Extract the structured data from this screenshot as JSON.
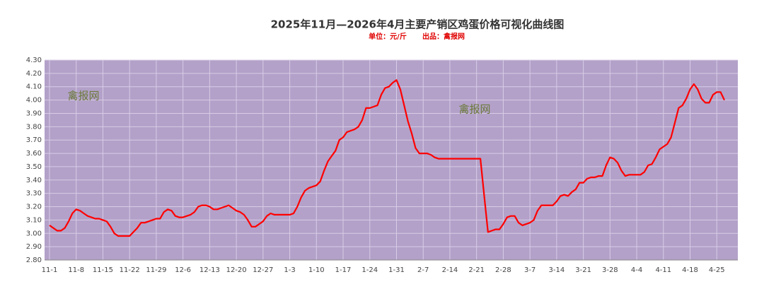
{
  "chart_data": {
    "type": "line",
    "title": "2025年11月—2026年4月主要产销区鸡蛋价格可视化曲线图",
    "subtitle": [
      "单位：元/斤",
      "出品：禽报网"
    ],
    "annotations": [
      "禽报网",
      "禽报网"
    ],
    "categories": [
      "11-1",
      null,
      null,
      null,
      null,
      null,
      null,
      "11-8",
      null,
      null,
      null,
      null,
      null,
      null,
      "11-15",
      null,
      null,
      null,
      null,
      null,
      null,
      "11-22",
      null,
      null,
      null,
      null,
      null,
      null,
      "11-29",
      null,
      null,
      null,
      null,
      null,
      null,
      "12-6",
      null,
      null,
      null,
      null,
      null,
      null,
      "12-13",
      null,
      null,
      null,
      null,
      null,
      null,
      "12-20",
      null,
      null,
      null,
      null,
      null,
      null,
      "12-27",
      null,
      null,
      null,
      null,
      null,
      null,
      "1-3",
      null,
      null,
      null,
      null,
      null,
      null,
      "1-10",
      null,
      null,
      null,
      null,
      null,
      null,
      "1-17",
      null,
      null,
      null,
      null,
      null,
      null,
      "1-24",
      null,
      null,
      null,
      null,
      null,
      null,
      "1-31",
      null,
      null,
      null,
      null,
      null,
      null,
      "2-7",
      null,
      null,
      null,
      null,
      null,
      null,
      "2-14",
      null,
      null,
      null,
      null,
      null,
      null,
      "2-21",
      null,
      null,
      null,
      null,
      null,
      null,
      "2-28",
      null,
      null,
      null,
      null,
      null,
      null,
      "3-7",
      null,
      null,
      null,
      null,
      null,
      null,
      "3-14",
      null,
      null,
      null,
      null,
      null,
      null,
      "3-21",
      null,
      null,
      null,
      null,
      null,
      null,
      "3-28",
      null,
      null,
      null,
      null,
      null,
      null,
      "4-4",
      null,
      null,
      null,
      null,
      null,
      null,
      "4-11",
      null,
      null,
      null,
      null,
      null,
      null,
      "4-18",
      null,
      null,
      null,
      null,
      null,
      null,
      "4-25",
      null,
      null
    ],
    "series": [
      {
        "color": "#ff0000",
        "values": [
          3.06,
          3.04,
          3.02,
          3.02,
          3.04,
          3.09,
          3.15,
          3.18,
          3.17,
          3.15,
          3.13,
          3.12,
          3.11,
          3.11,
          3.1,
          3.09,
          3.05,
          3.0,
          2.98,
          2.98,
          2.98,
          2.98,
          3.01,
          3.04,
          3.08,
          3.08,
          3.09,
          3.1,
          3.11,
          3.11,
          3.16,
          3.18,
          3.17,
          3.13,
          3.12,
          3.12,
          3.13,
          3.14,
          3.16,
          3.2,
          3.21,
          3.21,
          3.2,
          3.18,
          3.18,
          3.19,
          3.2,
          3.21,
          3.19,
          3.17,
          3.16,
          3.14,
          3.1,
          3.05,
          3.05,
          3.07,
          3.09,
          3.13,
          3.15,
          3.14,
          3.14,
          3.14,
          3.14,
          3.14,
          3.15,
          3.2,
          3.27,
          3.32,
          3.34,
          3.35,
          3.36,
          3.39,
          3.47,
          3.54,
          3.58,
          3.62,
          3.7,
          3.72,
          3.76,
          3.77,
          3.78,
          3.8,
          3.85,
          3.94,
          3.94,
          3.95,
          3.96,
          4.04,
          4.09,
          4.1,
          4.13,
          4.15,
          4.08,
          3.96,
          3.84,
          3.75,
          3.64,
          3.6,
          3.6,
          3.6,
          3.59,
          3.57,
          3.56,
          3.56,
          3.56,
          3.56,
          3.56,
          3.56,
          3.56,
          3.56,
          3.56,
          3.56,
          3.56,
          3.56,
          3.28,
          3.01,
          3.02,
          3.03,
          3.03,
          3.07,
          3.12,
          3.13,
          3.13,
          3.08,
          3.06,
          3.07,
          3.08,
          3.1,
          3.17,
          3.21,
          3.21,
          3.21,
          3.21,
          3.24,
          3.28,
          3.29,
          3.28,
          3.31,
          3.33,
          3.38,
          3.38,
          3.41,
          3.42,
          3.42,
          3.43,
          3.43,
          3.51,
          3.57,
          3.56,
          3.53,
          3.47,
          3.43,
          3.44,
          3.44,
          3.44,
          3.44,
          3.46,
          3.51,
          3.52,
          3.57,
          3.63,
          3.65,
          3.67,
          3.72,
          3.83,
          3.94,
          3.96,
          4.01,
          4.08,
          4.12,
          4.08,
          4.01,
          3.98,
          3.98,
          4.04,
          4.06,
          4.06,
          4.0
        ]
      }
    ],
    "ylim": [
      2.8,
      4.3
    ],
    "yticks": [
      {
        "value": 2.8,
        "label": "2.80"
      },
      {
        "value": 2.9,
        "label": "2.90"
      },
      {
        "value": 3.0,
        "label": "3.00"
      },
      {
        "value": 3.1,
        "label": "3.10"
      },
      {
        "value": 3.2,
        "label": "3.20"
      },
      {
        "value": 3.3,
        "label": "3.30"
      },
      {
        "value": 3.4,
        "label": "3.40"
      },
      {
        "value": 3.5,
        "label": "3.50"
      },
      {
        "value": 3.6,
        "label": "3.60"
      },
      {
        "value": 3.7,
        "label": "3.70"
      },
      {
        "value": 3.8,
        "label": "3.80"
      },
      {
        "value": 3.9,
        "label": "3.90"
      },
      {
        "value": 4.0,
        "label": "4.00"
      },
      {
        "value": 4.1,
        "label": "4.10"
      },
      {
        "value": 4.2,
        "label": "4.20"
      },
      {
        "value": 4.3,
        "label": "4.30"
      }
    ],
    "grid": true,
    "plot_background": "#b3a1c9"
  }
}
